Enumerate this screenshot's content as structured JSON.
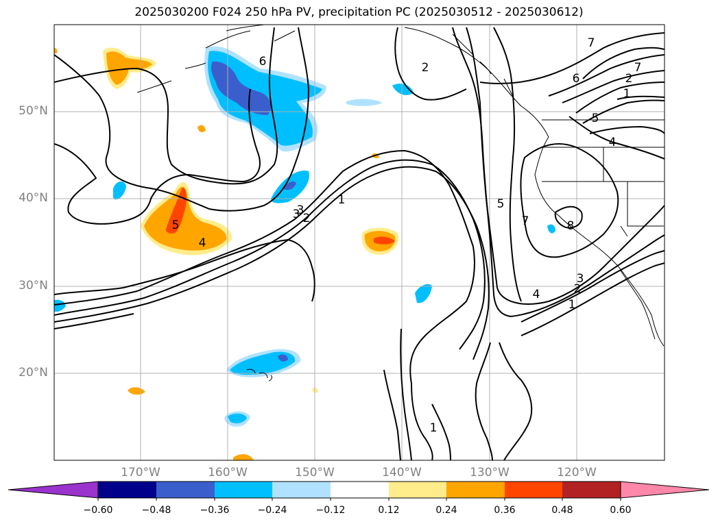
{
  "title": "2025030200 F024 250 hPa PV, precipitation PC (2025030512 - 2025030612)",
  "latitude_labels": [
    "50°N",
    "40°N",
    "30°N",
    "20°N"
  ],
  "longitude_labels": [
    "170°W",
    "160°W",
    "150°W",
    "140°W",
    "130°W",
    "120°W"
  ],
  "contour_labels": [
    "6",
    "7",
    "2",
    "1",
    "7",
    "6",
    "2",
    "1",
    "5",
    "4",
    "5",
    "7",
    "8",
    "4",
    "3",
    "2",
    "1",
    "3",
    "2",
    "1",
    "5",
    "4",
    "3"
  ],
  "colorbar": {
    "tick_labels": [
      "−0.60",
      "−0.48",
      "−0.36",
      "−0.24",
      "−0.12",
      "0.12",
      "0.24",
      "0.36",
      "0.48",
      "0.60"
    ],
    "colors": [
      "#9933cc",
      "#00008b",
      "#3a5fcd",
      "#00bfff",
      "#b0e2ff",
      "#ffffff",
      "#ffec8b",
      "#ffa500",
      "#ff4500",
      "#b22222",
      "#ff88aa"
    ]
  },
  "colors": {
    "contour": "#000000",
    "grid": "#b0b0b0",
    "coast": "#000000"
  }
}
